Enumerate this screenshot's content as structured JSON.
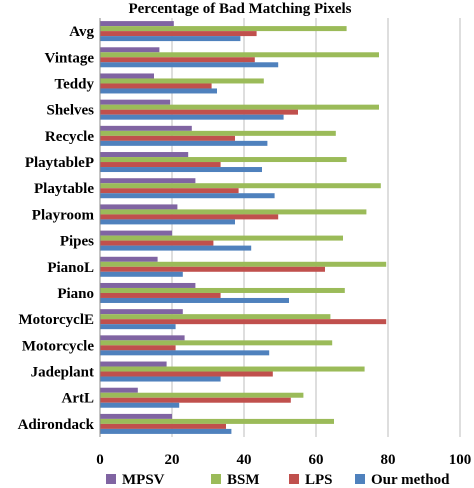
{
  "chart_data": {
    "type": "bar",
    "orientation": "horizontal",
    "title": "Percentage of Bad Matching Pixels",
    "xlabel": "",
    "ylabel": "",
    "xlim": [
      0,
      100
    ],
    "xticks": [
      "0",
      "20",
      "40",
      "60",
      "80",
      "100"
    ],
    "grid": true,
    "legend_position": "bottom",
    "categories": [
      "Avg",
      "Vintage",
      "Teddy",
      "Shelves",
      "Recycle",
      "PlaytableP",
      "Playtable",
      "Playroom",
      "Pipes",
      "PianoL",
      "Piano",
      "MotorcyclE",
      "Motorcycle",
      "Jadeplant",
      "ArtL",
      "Adirondack"
    ],
    "series": [
      {
        "name": "MPSV",
        "color": "#8064a2",
        "values": [
          20.5,
          16.5,
          15,
          19.5,
          25.5,
          24.5,
          26.5,
          21.5,
          20,
          16,
          26.5,
          23,
          23.5,
          18.5,
          10.5,
          20
        ]
      },
      {
        "name": "BSM",
        "color": "#9bbb59",
        "values": [
          68.5,
          77.5,
          45.5,
          77.5,
          65.5,
          68.5,
          78,
          74,
          67.5,
          79.5,
          68,
          64,
          64.5,
          73.5,
          56.5,
          65
        ]
      },
      {
        "name": "LPS",
        "color": "#c0504d",
        "values": [
          43.5,
          43,
          31,
          55,
          37.5,
          33.5,
          38.5,
          49.5,
          31.5,
          62.5,
          33.5,
          79.5,
          21,
          48,
          53,
          35
        ]
      },
      {
        "name": "Our method",
        "color": "#4f81bd",
        "values": [
          39,
          49.5,
          32.5,
          51,
          46.5,
          45,
          48.5,
          37.5,
          42,
          23,
          52.5,
          21,
          47,
          33.5,
          22,
          36.5
        ]
      }
    ]
  }
}
